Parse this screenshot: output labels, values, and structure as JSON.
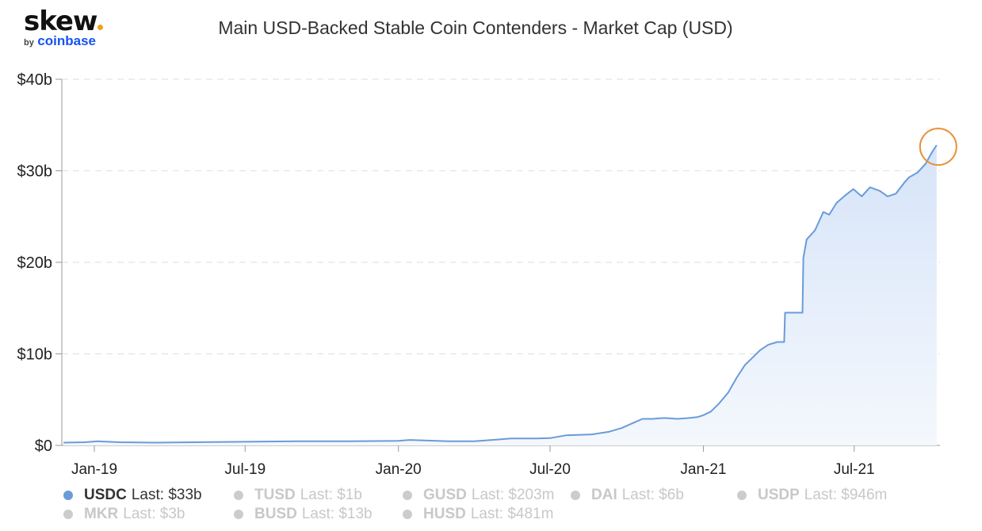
{
  "logo": {
    "brand": "skew",
    "by": "by",
    "company": "coinbase"
  },
  "title": "Main USD-Backed Stable Coin Contenders - Market Cap (USD)",
  "legend": [
    {
      "name": "USDC",
      "last": "Last: $33b",
      "active": true
    },
    {
      "name": "TUSD",
      "last": "Last: $1b",
      "active": false
    },
    {
      "name": "GUSD",
      "last": "Last: $203m",
      "active": false
    },
    {
      "name": "DAI",
      "last": "Last: $6b",
      "active": false
    },
    {
      "name": "USDP",
      "last": "Last: $946m",
      "active": false
    },
    {
      "name": "MKR",
      "last": "Last: $3b",
      "active": false
    },
    {
      "name": "BUSD",
      "last": "Last: $13b",
      "active": false
    },
    {
      "name": "HUSD",
      "last": "Last: $481m",
      "active": false
    }
  ],
  "colors": {
    "usdc": "#6a9bd8",
    "fill_top": "#dde8fa",
    "inactive_dot": "#cccccc",
    "highlight": "#e8913a"
  },
  "chart_data": {
    "type": "area",
    "title": "Main USD-Backed Stable Coin Contenders - Market Cap (USD)",
    "xlabel": "",
    "ylabel": "",
    "y_unit": "billions USD",
    "ylim": [
      0,
      40
    ],
    "y_ticks": [
      {
        "value": 0,
        "label": "$0"
      },
      {
        "value": 10,
        "label": "$10b"
      },
      {
        "value": 20,
        "label": "$20b"
      },
      {
        "value": 30,
        "label": "$30b"
      },
      {
        "value": 40,
        "label": "$40b"
      }
    ],
    "xlim": [
      "2018-11-23",
      "2021-10-12"
    ],
    "x_ticks": [
      {
        "date": "2019-01-01",
        "label": "Jan-19"
      },
      {
        "date": "2019-07-01",
        "label": "Jul-19"
      },
      {
        "date": "2020-01-01",
        "label": "Jan-20"
      },
      {
        "date": "2020-07-01",
        "label": "Jul-20"
      },
      {
        "date": "2021-01-01",
        "label": "Jan-21"
      },
      {
        "date": "2021-07-01",
        "label": "Jul-21"
      }
    ],
    "grid": true,
    "highlight_last_point": true,
    "series": [
      {
        "name": "USDC",
        "x": [
          "2018-11-25",
          "2018-12-20",
          "2019-01-05",
          "2019-02-01",
          "2019-03-15",
          "2019-05-01",
          "2019-07-01",
          "2019-09-01",
          "2019-11-01",
          "2020-01-01",
          "2020-01-15",
          "2020-03-01",
          "2020-04-01",
          "2020-05-15",
          "2020-06-15",
          "2020-07-01",
          "2020-07-20",
          "2020-08-20",
          "2020-09-10",
          "2020-09-25",
          "2020-10-10",
          "2020-10-20",
          "2020-11-01",
          "2020-11-15",
          "2020-12-01",
          "2020-12-15",
          "2020-12-25",
          "2021-01-01",
          "2021-01-10",
          "2021-01-20",
          "2021-01-31",
          "2021-02-10",
          "2021-02-20",
          "2021-02-28",
          "2021-03-10",
          "2021-03-20",
          "2021-03-31",
          "2021-04-08",
          "2021-04-09",
          "2021-04-30",
          "2021-05-01",
          "2021-05-05",
          "2021-05-15",
          "2021-05-25",
          "2021-06-01",
          "2021-06-10",
          "2021-06-20",
          "2021-06-30",
          "2021-07-10",
          "2021-07-20",
          "2021-08-01",
          "2021-08-10",
          "2021-08-20",
          "2021-08-31",
          "2021-09-05",
          "2021-09-15",
          "2021-09-25",
          "2021-10-01",
          "2021-10-05",
          "2021-10-08"
        ],
        "values": [
          0.3,
          0.35,
          0.45,
          0.35,
          0.3,
          0.35,
          0.4,
          0.45,
          0.45,
          0.5,
          0.6,
          0.45,
          0.45,
          0.75,
          0.75,
          0.8,
          1.1,
          1.2,
          1.5,
          1.9,
          2.5,
          2.9,
          2.9,
          3.0,
          2.9,
          3.0,
          3.1,
          3.3,
          3.7,
          4.6,
          5.8,
          7.4,
          8.8,
          9.5,
          10.4,
          11.0,
          11.3,
          11.3,
          14.5,
          14.5,
          20.5,
          22.5,
          23.5,
          25.5,
          25.2,
          26.5,
          27.3,
          28.0,
          27.2,
          28.2,
          27.8,
          27.2,
          27.5,
          28.8,
          29.3,
          29.8,
          30.8,
          31.8,
          32.4,
          32.8
        ]
      }
    ]
  }
}
